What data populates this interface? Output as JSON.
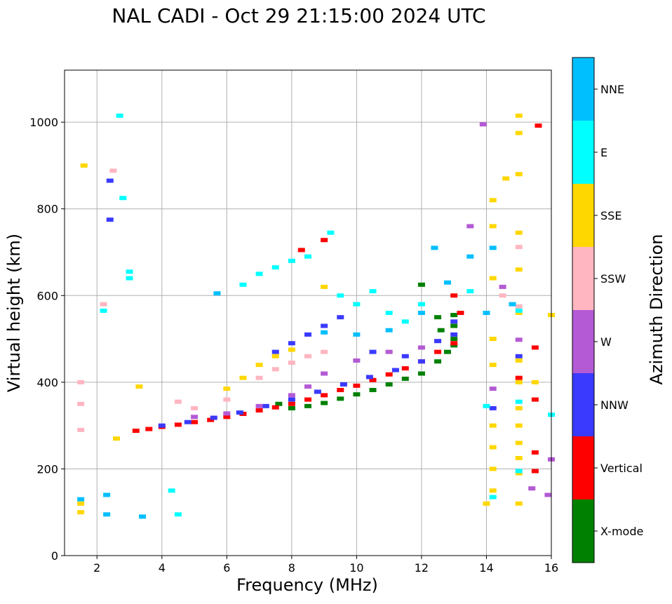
{
  "chart_data": {
    "type": "scatter",
    "title": "NAL CADI - Oct 29 21:15:00 2024 UTC",
    "xlabel": "Frequency (MHz)",
    "ylabel": "Virtual height (km)",
    "xlim": [
      1,
      16
    ],
    "ylim": [
      0,
      1120
    ],
    "xticks": [
      2,
      4,
      6,
      8,
      10,
      12,
      14,
      16
    ],
    "yticks": [
      0,
      200,
      400,
      600,
      800,
      1000
    ],
    "grid": true,
    "colorbar": {
      "label": "Azimuth Direction",
      "categories": [
        {
          "name": "X-mode",
          "color": "#008000"
        },
        {
          "name": "Vertical",
          "color": "#ff0000"
        },
        {
          "name": "NNW",
          "color": "#3a3aff"
        },
        {
          "name": "W",
          "color": "#b45ad4"
        },
        {
          "name": "SSW",
          "color": "#ffb6c1"
        },
        {
          "name": "SSE",
          "color": "#ffd700"
        },
        {
          "name": "E",
          "color": "#00ffff"
        },
        {
          "name": "NNE",
          "color": "#00bfff"
        }
      ]
    },
    "series": [
      {
        "name": "X-mode",
        "points": [
          [
            7.6,
            350
          ],
          [
            8.0,
            340
          ],
          [
            8.5,
            345
          ],
          [
            9.0,
            352
          ],
          [
            9.5,
            362
          ],
          [
            10.0,
            372
          ],
          [
            10.5,
            382
          ],
          [
            11.0,
            395
          ],
          [
            11.5,
            408
          ],
          [
            12.0,
            420
          ],
          [
            12.5,
            448
          ],
          [
            12.8,
            470
          ],
          [
            13.0,
            485
          ],
          [
            13.0,
            500
          ],
          [
            12.6,
            520
          ],
          [
            13.0,
            530
          ],
          [
            12.5,
            550
          ],
          [
            13.0,
            555
          ],
          [
            12.0,
            625
          ]
        ]
      },
      {
        "name": "Vertical",
        "points": [
          [
            3.2,
            288
          ],
          [
            3.6,
            292
          ],
          [
            4.0,
            297
          ],
          [
            4.5,
            302
          ],
          [
            5.0,
            308
          ],
          [
            5.5,
            313
          ],
          [
            6.0,
            320
          ],
          [
            6.5,
            327
          ],
          [
            7.0,
            335
          ],
          [
            7.5,
            342
          ],
          [
            8.0,
            350
          ],
          [
            8.5,
            360
          ],
          [
            9.0,
            370
          ],
          [
            9.5,
            382
          ],
          [
            10.0,
            392
          ],
          [
            10.5,
            405
          ],
          [
            11.0,
            418
          ],
          [
            11.5,
            432
          ],
          [
            12.0,
            448
          ],
          [
            12.5,
            470
          ],
          [
            13.0,
            490
          ],
          [
            13.2,
            560
          ],
          [
            8.3,
            705
          ],
          [
            9.0,
            728
          ],
          [
            13.0,
            600
          ],
          [
            15.0,
            410
          ],
          [
            15.5,
            480
          ],
          [
            15.5,
            360
          ],
          [
            15.5,
            238
          ],
          [
            15.5,
            195
          ],
          [
            15.6,
            992
          ]
        ]
      },
      {
        "name": "NNW",
        "points": [
          [
            4.0,
            300
          ],
          [
            4.8,
            308
          ],
          [
            5.6,
            318
          ],
          [
            6.4,
            330
          ],
          [
            7.2,
            345
          ],
          [
            8.0,
            360
          ],
          [
            8.8,
            378
          ],
          [
            9.6,
            395
          ],
          [
            10.4,
            412
          ],
          [
            11.2,
            428
          ],
          [
            12.0,
            448
          ],
          [
            12.5,
            495
          ],
          [
            13.0,
            510
          ],
          [
            13.0,
            540
          ],
          [
            7.5,
            470
          ],
          [
            8.0,
            490
          ],
          [
            8.5,
            510
          ],
          [
            9.0,
            530
          ],
          [
            9.5,
            550
          ],
          [
            10.5,
            470
          ],
          [
            11.5,
            460
          ],
          [
            2.4,
            775
          ],
          [
            2.4,
            865
          ],
          [
            14.2,
            340
          ],
          [
            15.0,
            460
          ]
        ]
      },
      {
        "name": "W",
        "points": [
          [
            5.0,
            320
          ],
          [
            6.0,
            328
          ],
          [
            7.0,
            345
          ],
          [
            8.0,
            370
          ],
          [
            8.5,
            390
          ],
          [
            9.0,
            420
          ],
          [
            10.0,
            450
          ],
          [
            11.0,
            470
          ],
          [
            12.0,
            480
          ],
          [
            13.5,
            760
          ],
          [
            13.9,
            995
          ],
          [
            14.5,
            620
          ],
          [
            14.2,
            385
          ],
          [
            15.0,
            498
          ],
          [
            15.4,
            155
          ],
          [
            15.9,
            140
          ],
          [
            16.0,
            222
          ]
        ]
      },
      {
        "name": "SSW",
        "points": [
          [
            1.5,
            400
          ],
          [
            1.5,
            350
          ],
          [
            1.5,
            290
          ],
          [
            2.2,
            580
          ],
          [
            2.5,
            888
          ],
          [
            4.5,
            355
          ],
          [
            5.0,
            340
          ],
          [
            6.0,
            360
          ],
          [
            7.0,
            410
          ],
          [
            7.5,
            430
          ],
          [
            8.0,
            445
          ],
          [
            8.5,
            460
          ],
          [
            9.0,
            470
          ],
          [
            14.5,
            600
          ],
          [
            15.0,
            712
          ],
          [
            15.0,
            575
          ]
        ]
      },
      {
        "name": "SSE",
        "points": [
          [
            1.6,
            900
          ],
          [
            1.5,
            120
          ],
          [
            1.5,
            100
          ],
          [
            3.3,
            390
          ],
          [
            2.6,
            270
          ],
          [
            6.0,
            385
          ],
          [
            6.5,
            410
          ],
          [
            7.0,
            440
          ],
          [
            7.5,
            460
          ],
          [
            8.0,
            475
          ],
          [
            9.0,
            620
          ],
          [
            14.2,
            820
          ],
          [
            14.2,
            760
          ],
          [
            14.2,
            640
          ],
          [
            14.2,
            500
          ],
          [
            14.2,
            440
          ],
          [
            14.2,
            300
          ],
          [
            14.2,
            250
          ],
          [
            14.2,
            200
          ],
          [
            14.2,
            150
          ],
          [
            14.0,
            120
          ],
          [
            14.6,
            870
          ],
          [
            15.0,
            1015
          ],
          [
            15.0,
            975
          ],
          [
            15.0,
            880
          ],
          [
            15.0,
            745
          ],
          [
            15.0,
            660
          ],
          [
            15.0,
            560
          ],
          [
            15.0,
            450
          ],
          [
            15.0,
            400
          ],
          [
            15.0,
            340
          ],
          [
            15.0,
            300
          ],
          [
            15.0,
            260
          ],
          [
            15.0,
            225
          ],
          [
            15.0,
            190
          ],
          [
            15.0,
            120
          ],
          [
            16.0,
            555
          ],
          [
            15.5,
            400
          ]
        ]
      },
      {
        "name": "E",
        "points": [
          [
            2.2,
            565
          ],
          [
            3.0,
            655
          ],
          [
            3.0,
            640
          ],
          [
            2.7,
            1015
          ],
          [
            2.8,
            825
          ],
          [
            4.5,
            95
          ],
          [
            4.3,
            150
          ],
          [
            6.5,
            625
          ],
          [
            7.0,
            650
          ],
          [
            7.5,
            665
          ],
          [
            8.0,
            680
          ],
          [
            8.5,
            690
          ],
          [
            9.2,
            745
          ],
          [
            9.5,
            600
          ],
          [
            10.0,
            580
          ],
          [
            10.5,
            610
          ],
          [
            11.0,
            560
          ],
          [
            11.5,
            540
          ],
          [
            12.0,
            580
          ],
          [
            13.5,
            610
          ],
          [
            14.0,
            345
          ],
          [
            15.0,
            195
          ],
          [
            15.0,
            355
          ],
          [
            15.0,
            565
          ],
          [
            16.0,
            325
          ],
          [
            14.2,
            135
          ]
        ]
      },
      {
        "name": "NNE",
        "points": [
          [
            1.5,
            130
          ],
          [
            2.3,
            95
          ],
          [
            2.3,
            140
          ],
          [
            3.4,
            90
          ],
          [
            5.7,
            605
          ],
          [
            9.0,
            515
          ],
          [
            10.0,
            510
          ],
          [
            11.0,
            520
          ],
          [
            12.0,
            560
          ],
          [
            12.4,
            710
          ],
          [
            12.8,
            630
          ],
          [
            13.5,
            690
          ],
          [
            14.0,
            560
          ],
          [
            14.2,
            710
          ],
          [
            14.8,
            580
          ]
        ]
      }
    ]
  }
}
